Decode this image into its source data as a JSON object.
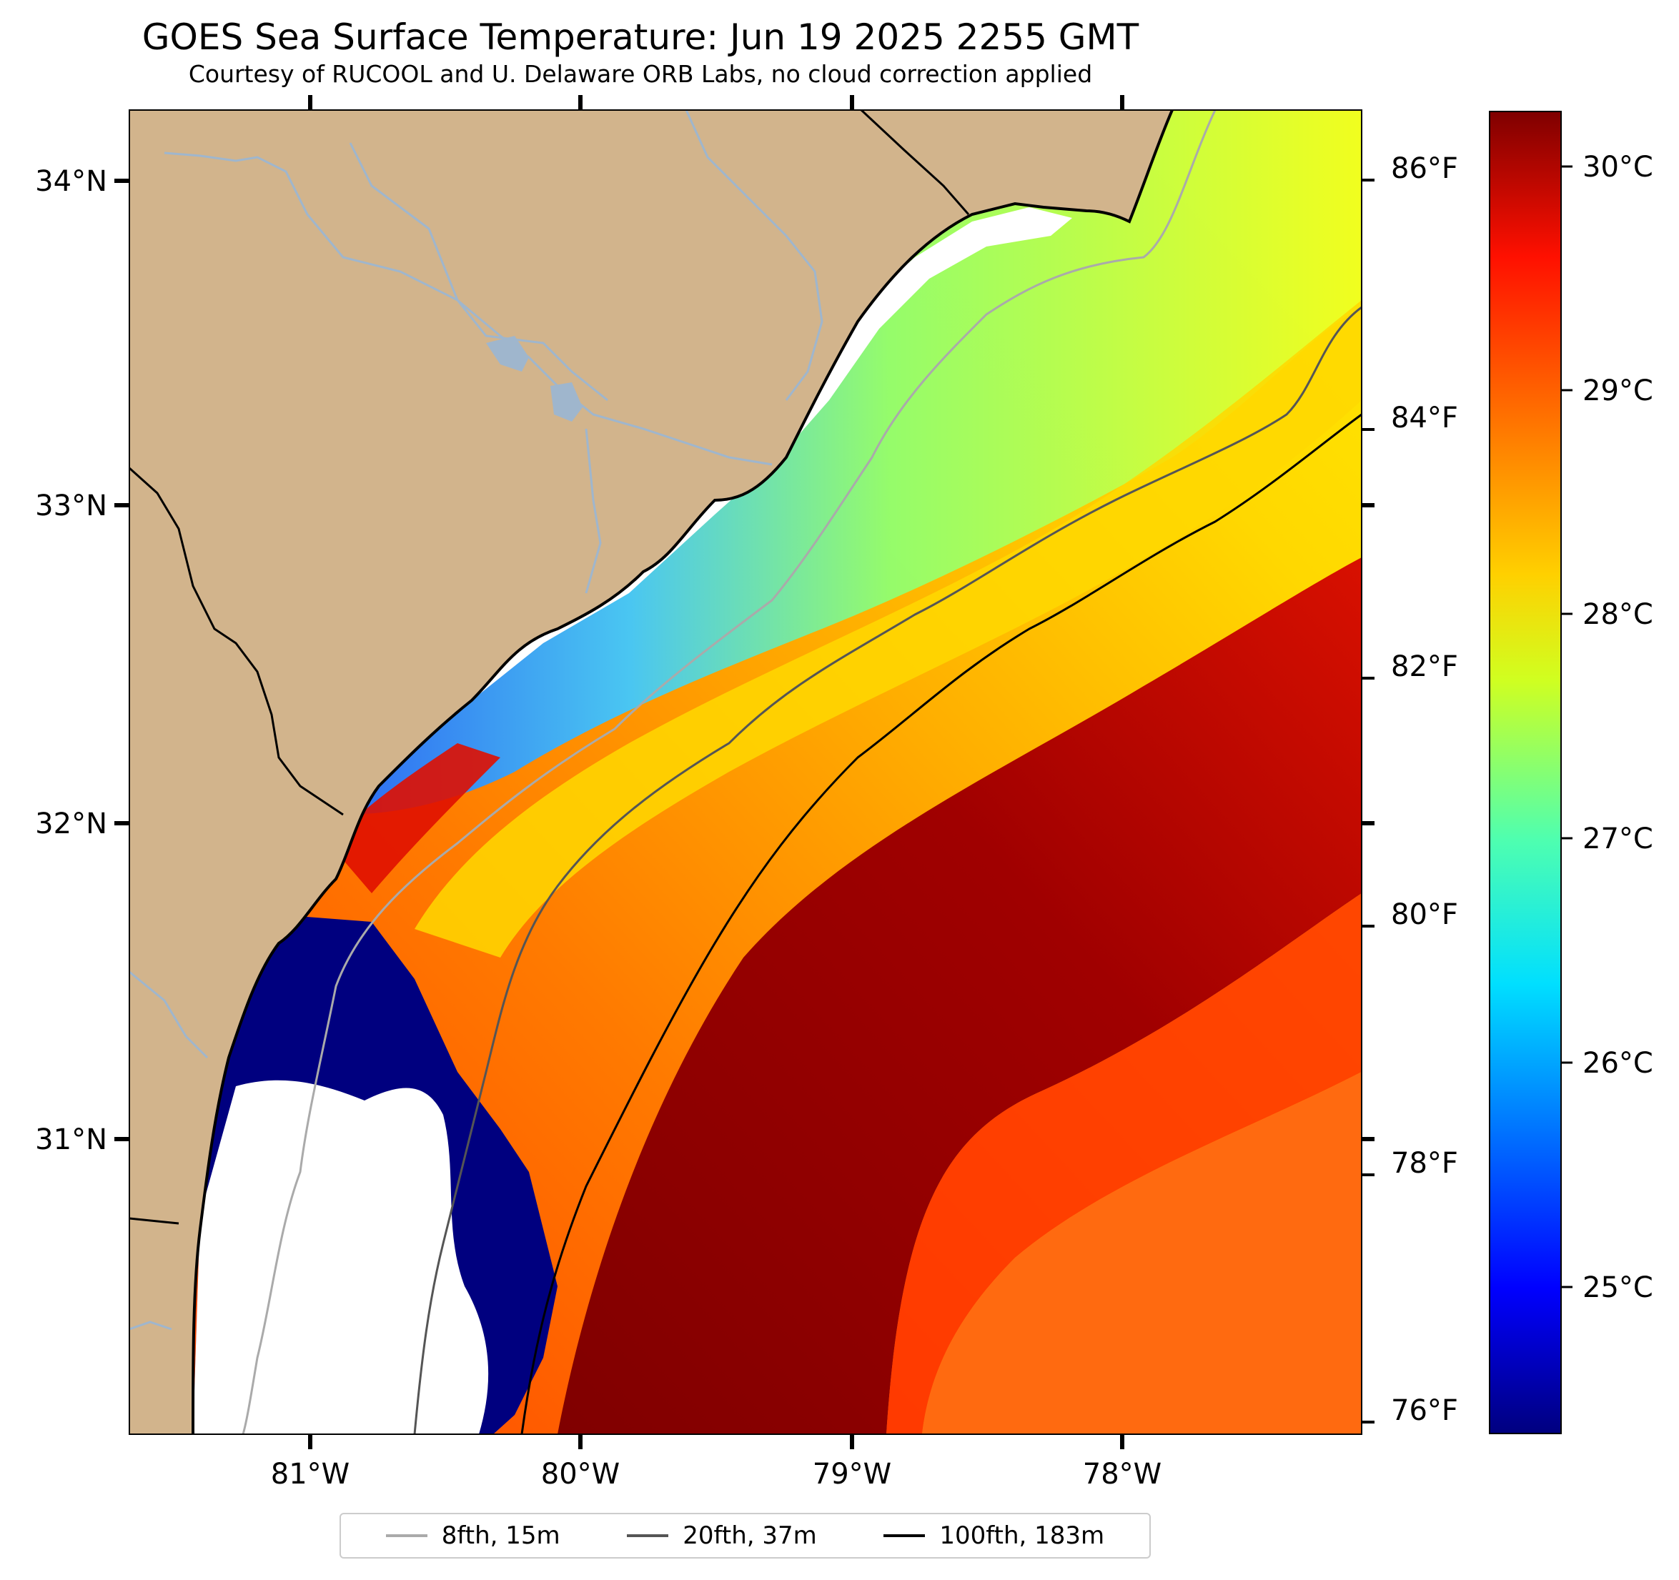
{
  "title": "GOES Sea Surface Temperature: Jun 19 2025 2255 GMT",
  "subtitle": "Courtesy of RUCOOL and U. Delaware ORB Labs, no cloud correction applied",
  "map": {
    "latitude_labels": [
      "34°N",
      "33°N",
      "32°N",
      "31°N"
    ],
    "longitude_labels": [
      "81°W",
      "80°W",
      "79°W",
      "78°W"
    ],
    "land_color": "#d2b48c",
    "river_color": "#9fb6cd",
    "missing_data_color": "#ffffff"
  },
  "colorbar": {
    "celsius_labels": [
      "30°C",
      "29°C",
      "28°C",
      "27°C",
      "26°C",
      "25°C"
    ],
    "celsius_values": [
      30,
      29,
      28,
      27,
      26,
      25
    ],
    "fahrenheit_labels": [
      "86°F",
      "84°F",
      "82°F",
      "80°F",
      "78°F",
      "76°F"
    ],
    "fahrenheit_values": [
      86,
      84,
      82,
      80,
      78,
      76
    ],
    "range_c": [
      24.3,
      30.2
    ],
    "colormap": "jet",
    "colors": [
      "#00007f",
      "#0000ff",
      "#007fff",
      "#00ffff",
      "#7fff7f",
      "#ffff00",
      "#ff7f00",
      "#ff0000",
      "#7f0000"
    ]
  },
  "legend": {
    "items": [
      {
        "label": "8fth, 15m",
        "color": "#aaaaaa"
      },
      {
        "label": "20fth, 37m",
        "color": "#555555"
      },
      {
        "label": "100fth, 183m",
        "color": "#000000"
      }
    ]
  }
}
